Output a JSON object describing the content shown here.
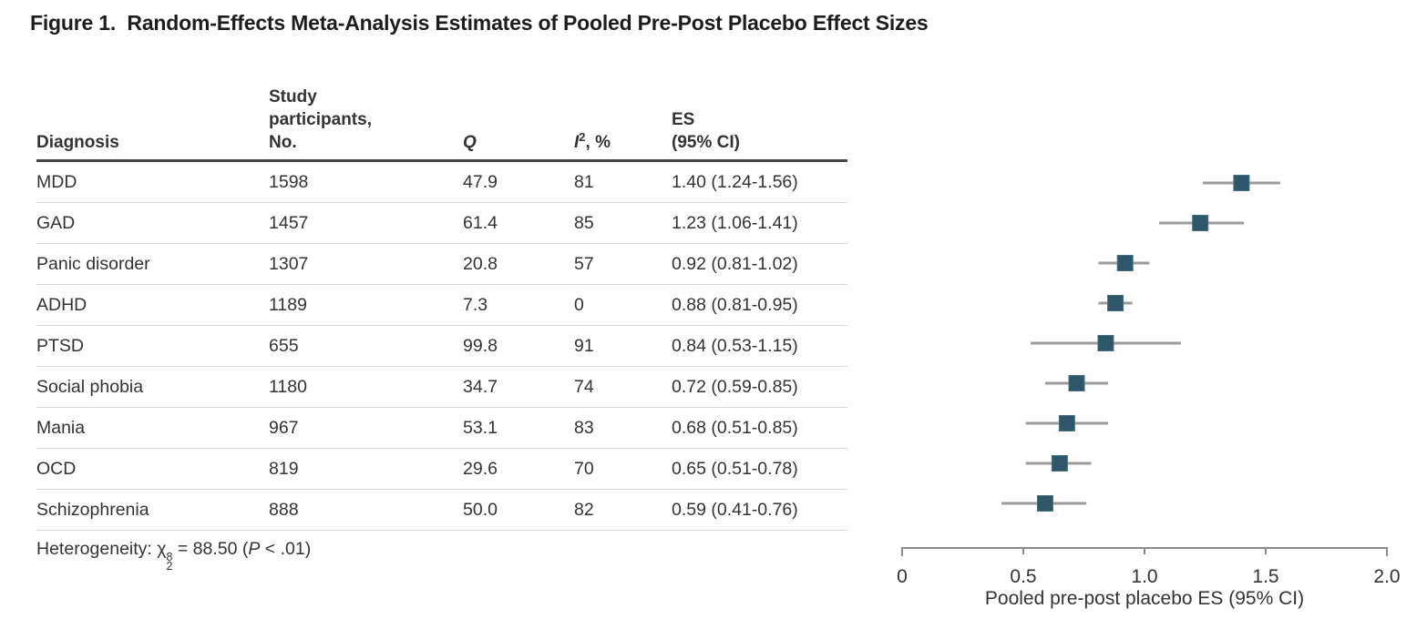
{
  "figure": {
    "title": "Figure 1.  Random-Effects Meta-Analysis Estimates of Pooled Pre-Post Placebo Effect Sizes"
  },
  "table": {
    "headers": {
      "diagnosis": "Diagnosis",
      "participants": "Study\nparticipants,\nNo.",
      "q": "Q",
      "i2_base": "I",
      "i2_sup": "2",
      "i2_rest": ", %",
      "es": "ES\n(95% CI)"
    },
    "rows": [
      {
        "diagnosis": "MDD",
        "participants": "1598",
        "q": "47.9",
        "i2": "81",
        "es": "1.40 (1.24-1.56)"
      },
      {
        "diagnosis": "GAD",
        "participants": "1457",
        "q": "61.4",
        "i2": "85",
        "es": "1.23 (1.06-1.41)"
      },
      {
        "diagnosis": "Panic disorder",
        "participants": "1307",
        "q": "20.8",
        "i2": "57",
        "es": "0.92 (0.81-1.02)"
      },
      {
        "diagnosis": "ADHD",
        "participants": "1189",
        "q": "7.3",
        "i2": "0",
        "es": "0.88 (0.81-0.95)"
      },
      {
        "diagnosis": "PTSD",
        "participants": "655",
        "q": "99.8",
        "i2": "91",
        "es": "0.84 (0.53-1.15)"
      },
      {
        "diagnosis": "Social phobia",
        "participants": "1180",
        "q": "34.7",
        "i2": "74",
        "es": "0.72 (0.59-0.85)"
      },
      {
        "diagnosis": "Mania",
        "participants": "967",
        "q": "53.1",
        "i2": "83",
        "es": "0.68 (0.51-0.85)"
      },
      {
        "diagnosis": "OCD",
        "participants": "819",
        "q": "29.6",
        "i2": "70",
        "es": "0.65 (0.51-0.78)"
      },
      {
        "diagnosis": "Schizophrenia",
        "participants": "888",
        "q": "50.0",
        "i2": "82",
        "es": "0.59 (0.41-0.76)"
      }
    ],
    "footer": {
      "het_label": "Heterogeneity: χ",
      "het_sup": "8",
      "het_sub": "2",
      "het_eq": " = 88.50 (",
      "het_p": "P",
      "het_tail": " < .01)"
    }
  },
  "chart_data": {
    "type": "forest",
    "series": [
      {
        "label": "MDD",
        "es": 1.4,
        "lo": 1.24,
        "hi": 1.56
      },
      {
        "label": "GAD",
        "es": 1.23,
        "lo": 1.06,
        "hi": 1.41
      },
      {
        "label": "Panic disorder",
        "es": 0.92,
        "lo": 0.81,
        "hi": 1.02
      },
      {
        "label": "ADHD",
        "es": 0.88,
        "lo": 0.81,
        "hi": 0.95
      },
      {
        "label": "PTSD",
        "es": 0.84,
        "lo": 0.53,
        "hi": 1.15
      },
      {
        "label": "Social phobia",
        "es": 0.72,
        "lo": 0.59,
        "hi": 0.85
      },
      {
        "label": "Mania",
        "es": 0.68,
        "lo": 0.51,
        "hi": 0.85
      },
      {
        "label": "OCD",
        "es": 0.65,
        "lo": 0.51,
        "hi": 0.78
      },
      {
        "label": "Schizophrenia",
        "es": 0.59,
        "lo": 0.41,
        "hi": 0.76
      }
    ],
    "xlabel": "Pooled pre-post placebo ES (95% CI)",
    "xlim": [
      0,
      2.0
    ],
    "x_ticks": [
      0,
      0.5,
      1.0,
      1.5,
      2.0
    ],
    "x_tick_labels": [
      "0",
      "0.5",
      "1.0",
      "1.5",
      "2.0"
    ],
    "grid": false,
    "legend": "none"
  },
  "colors": {
    "marker_fill": "#2e586a",
    "marker_edge": "#47707f",
    "ci_line": "#9b9b9b",
    "axis": "#8c8c8c",
    "text": "#333333"
  }
}
